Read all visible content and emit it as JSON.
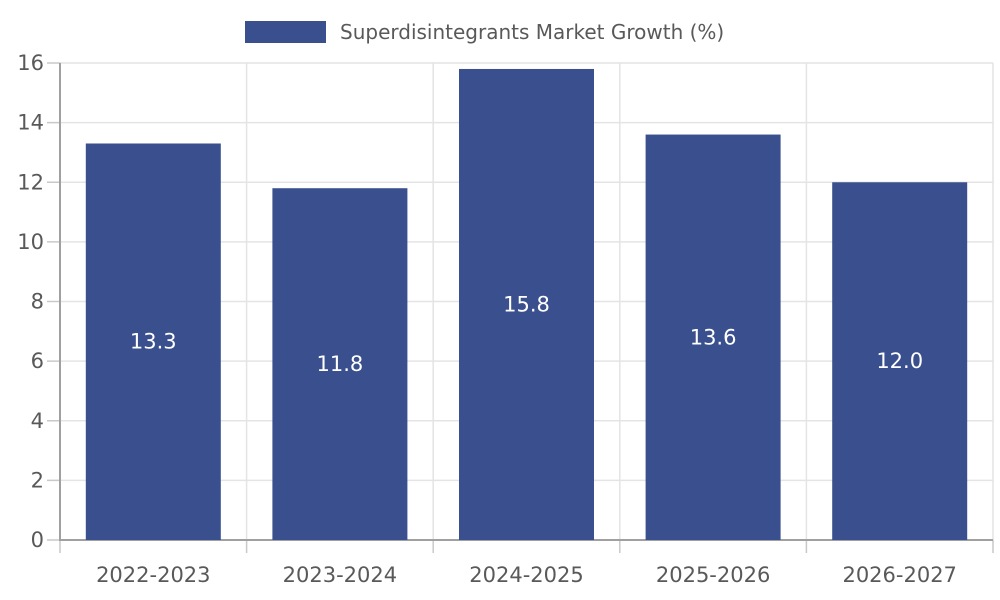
{
  "legend": {
    "label": "Superdisintegrants Market Growth (%)"
  },
  "chart_data": {
    "type": "bar",
    "title": "Superdisintegrants Market Growth (%)",
    "categories": [
      "2022-2023",
      "2023-2024",
      "2024-2025",
      "2025-2026",
      "2026-2027"
    ],
    "values": [
      13.3,
      11.8,
      15.8,
      13.6,
      12.0
    ],
    "value_labels": [
      "13.3",
      "11.8",
      "15.8",
      "13.6",
      "12.0"
    ],
    "xlabel": "",
    "ylabel": "",
    "ylim": [
      0,
      16
    ],
    "ytick_step": 2,
    "ytick_labels": [
      "0",
      "2",
      "4",
      "6",
      "8",
      "10",
      "12",
      "14",
      "16"
    ],
    "grid": true,
    "legend_position": "top-center",
    "colors": {
      "bar": "#3A4F8D",
      "grid": "#E4E4E4",
      "spine": "#A0A0A0",
      "tick": "#C9C9C9",
      "text": "#595959",
      "value_label": "#FFFFFF",
      "background": "#FFFFFF"
    }
  }
}
